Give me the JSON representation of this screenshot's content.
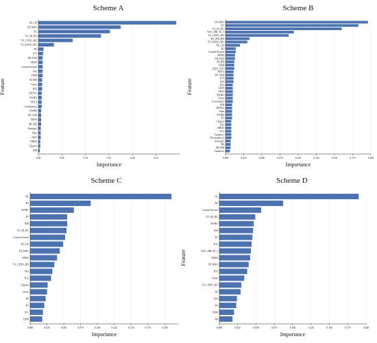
{
  "chart_data": [
    {
      "type": "bar",
      "orientation": "horizontal",
      "title": "Scheme A",
      "xlabel": "Importance",
      "ylabel": "Feature",
      "xlim": [
        0,
        0.3
      ],
      "xticks": [
        "0.00",
        "0.05",
        "0.10",
        "0.15",
        "0.20",
        "0.25"
      ],
      "xtick_values": [
        0,
        0.05,
        0.1,
        0.15,
        0.2,
        0.25
      ],
      "grid": true,
      "categories": [
        "DI_LEI",
        "DI_MAO",
        "NL",
        "YU_BI_DU",
        "TU_CENG_HD",
        "TU_RANG_MC",
        "B2",
        "EVI",
        "ZB_FGD",
        "NDWI",
        "Coastal Aerosol",
        "Red",
        "DEM",
        "SLOPE",
        "Green",
        "B12",
        "NDVIre",
        "SWIR1",
        "MTCI",
        "Correlation1",
        "SWIR2",
        "PO_WEI",
        "NDVI",
        "MCARI",
        "Entropy2",
        "Blue",
        "SAVI",
        "NDI45",
        "CIgreen",
        "NIR"
      ],
      "values": [
        0.293,
        0.175,
        0.152,
        0.133,
        0.073,
        0.033,
        0.011,
        0.01,
        0.009,
        0.009,
        0.009,
        0.009,
        0.009,
        0.008,
        0.008,
        0.008,
        0.007,
        0.007,
        0.007,
        0.007,
        0.006,
        0.006,
        0.006,
        0.006,
        0.005,
        0.005,
        0.005,
        0.004,
        0.004,
        0.003
      ]
    },
    {
      "type": "bar",
      "orientation": "horizontal",
      "title": "Scheme B",
      "xlabel": "Importance",
      "ylabel": "Feature",
      "xlim": [
        0,
        0.2
      ],
      "xticks": [
        "0.000",
        "0.025",
        "0.050",
        "0.075",
        "0.100",
        "0.125",
        "0.150",
        "0.175",
        "0.200"
      ],
      "xtick_values": [
        0,
        0.025,
        0.05,
        0.075,
        0.1,
        0.125,
        0.15,
        0.175,
        0.2
      ],
      "grid": true,
      "categories": [
        "DI_MAO",
        "NL",
        "YU_BI_DU",
        "YOU_SHI_SZ_1",
        "TU_CENG_HD",
        "FU_ZHI_HD",
        "TU_RANG_MC",
        "DI_LEI",
        "B2",
        "Coastal Aerosol",
        "NDWI",
        "ZB_FGD",
        "SLOPE",
        "DEM",
        "QUN_LUO",
        "MTCI",
        "PO_WEI",
        "EVI",
        "Red",
        "B12",
        "SAVI",
        "NDVI",
        "SWIR1",
        "Green",
        "Correlation1",
        "NIR",
        "NDVIre",
        "Blue",
        "SWIR2",
        "B5",
        "CIgreen",
        "B12",
        "NDI45",
        "B11",
        "Variance1",
        "Dissimilarity2",
        "Entropy2",
        "B4",
        "MCARI",
        "Variance2"
      ],
      "values": [
        0.196,
        0.183,
        0.16,
        0.094,
        0.087,
        0.033,
        0.03,
        0.02,
        0.014,
        0.014,
        0.013,
        0.013,
        0.012,
        0.012,
        0.012,
        0.011,
        0.011,
        0.011,
        0.011,
        0.01,
        0.01,
        0.01,
        0.01,
        0.01,
        0.01,
        0.009,
        0.009,
        0.009,
        0.009,
        0.009,
        0.008,
        0.008,
        0.008,
        0.008,
        0.008,
        0.008,
        0.007,
        0.007,
        0.007,
        0.006
      ]
    },
    {
      "type": "bar",
      "orientation": "horizontal",
      "title": "Scheme C",
      "xlabel": "Importance",
      "ylabel": "Feature",
      "xlim": [
        0,
        0.22
      ],
      "xticks": [
        "0.000",
        "0.025",
        "0.050",
        "0.075",
        "0.100",
        "0.125",
        "0.150",
        "0.175",
        "0.200"
      ],
      "xtick_values": [
        0,
        0.025,
        0.05,
        0.075,
        0.1,
        0.125,
        0.15,
        0.175,
        0.2
      ],
      "grid": true,
      "categories": [
        "NL",
        "B2",
        "SWIR1",
        "B7",
        "NIR",
        "YU_BI_DU",
        "Coastal Aerosol",
        "DI_LEI",
        "DI_MAO",
        "NDWI",
        "TU_CENG_HD",
        "Red",
        "B12",
        "CIgreen",
        "Green",
        "B9",
        "B3",
        "B11",
        "DEM"
      ],
      "values": [
        0.21,
        0.09,
        0.065,
        0.055,
        0.055,
        0.054,
        0.052,
        0.049,
        0.044,
        0.04,
        0.036,
        0.033,
        0.031,
        0.026,
        0.025,
        0.023,
        0.021,
        0.019,
        0.018
      ]
    },
    {
      "type": "bar",
      "orientation": "horizontal",
      "title": "Scheme D",
      "xlabel": "Importance",
      "ylabel": "Feature",
      "xlim": [
        0,
        0.2
      ],
      "xticks": [
        "0.000",
        "0.025",
        "0.050",
        "0.075",
        "0.100",
        "0.125",
        "0.150",
        "0.175",
        "0.200"
      ],
      "xtick_values": [
        0,
        0.025,
        0.05,
        0.075,
        0.1,
        0.125,
        0.15,
        0.175,
        0.2
      ],
      "grid": true,
      "categories": [
        "NL",
        "B2",
        "Coastal Aerosol",
        "YU_BI_DU",
        "SWIR1",
        "NIR",
        "B7",
        "B11",
        "YOU_SHI_SZ_1",
        "NDWI",
        "DI_MAO",
        "DVI",
        "Green",
        "TU_CENG_HD",
        "B4",
        "Red",
        "B3",
        "DEM",
        "B9"
      ],
      "values": [
        0.19,
        0.087,
        0.057,
        0.049,
        0.047,
        0.046,
        0.045,
        0.044,
        0.043,
        0.042,
        0.04,
        0.038,
        0.034,
        0.03,
        0.029,
        0.024,
        0.023,
        0.02,
        0.018
      ]
    }
  ]
}
